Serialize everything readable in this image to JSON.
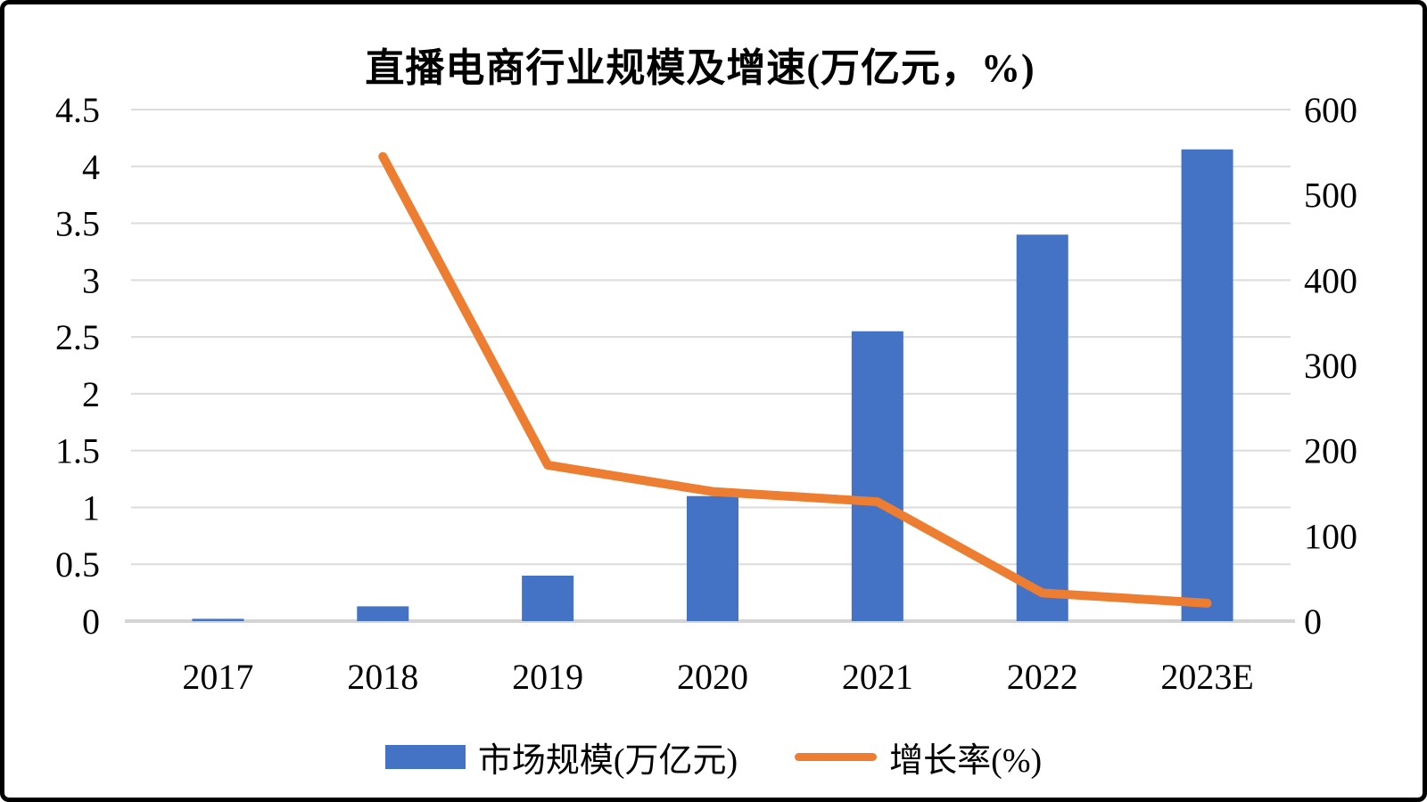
{
  "title": "直播电商行业规模及增速(万亿元，%)",
  "legend": {
    "items": [
      {
        "label": "市场规模(万亿元)",
        "marker": "bar-swatch",
        "color": "#4472C4"
      },
      {
        "label": "增长率(%)",
        "marker": "line-swatch",
        "color": "#ED7D31"
      }
    ]
  },
  "colors": {
    "bar": "#4472C4",
    "line": "#ED7D31",
    "gridline": "#DCDCDC",
    "axis_line": "#D4D4D4",
    "text": "#000000",
    "background": "#FFFFFF",
    "border": "#000000"
  },
  "chart_data": {
    "type": "bar",
    "subtype": "combo-bar-line-dual-axis",
    "title": "直播电商行业规模及增速(万亿元，%)",
    "categories": [
      "2017",
      "2018",
      "2019",
      "2020",
      "2021",
      "2022",
      "2023E"
    ],
    "series": [
      {
        "name": "市场规模(万亿元)",
        "type": "bar",
        "axis": "left",
        "color": "#4472C4",
        "values": [
          0.02,
          0.13,
          0.4,
          1.1,
          2.55,
          3.4,
          4.15
        ]
      },
      {
        "name": "增长率(%)",
        "type": "line",
        "axis": "right",
        "color": "#ED7D31",
        "values": [
          null,
          545,
          183,
          152,
          140,
          33,
          21
        ]
      }
    ],
    "left_axis": {
      "min": 0,
      "max": 4.5,
      "step": 0.5,
      "tick_labels": [
        "4.5",
        "4",
        "3.5",
        "3",
        "2.5",
        "2",
        "1.5",
        "1",
        "0.5",
        "0"
      ]
    },
    "right_axis": {
      "min": 0,
      "max": 600,
      "step": 100,
      "tick_labels": [
        "600",
        "500",
        "400",
        "300",
        "200",
        "100",
        "0"
      ]
    },
    "xlabel": "",
    "ylabel": "",
    "grid": true,
    "legend_position": "bottom"
  }
}
